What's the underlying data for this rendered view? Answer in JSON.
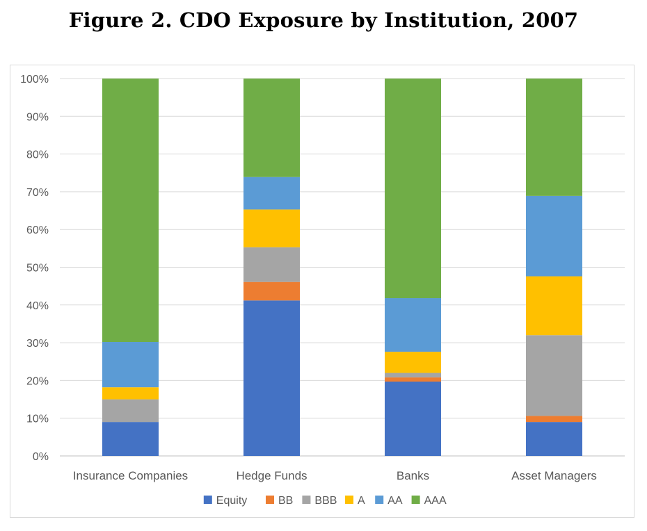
{
  "chart_data": {
    "type": "bar",
    "stacked": true,
    "title": "Figure 2. CDO Exposure by Institution, 2007",
    "xlabel": "",
    "ylabel": "",
    "ylim": [
      0,
      100
    ],
    "ytick_format": "percent",
    "yticks": [
      "0%",
      "10%",
      "20%",
      "30%",
      "40%",
      "50%",
      "60%",
      "70%",
      "80%",
      "90%",
      "100%"
    ],
    "grid": true,
    "legend_position": "bottom",
    "categories": [
      "Insurance Companies",
      "Hedge Funds",
      "Banks",
      "Asset Managers"
    ],
    "series": [
      {
        "name": "Equity",
        "color": "#4472c4",
        "values": [
          9.0,
          41.2,
          19.7,
          9.0
        ]
      },
      {
        "name": "BB",
        "color": "#ed7d31",
        "values": [
          0.0,
          4.9,
          1.1,
          1.6
        ]
      },
      {
        "name": "BBB",
        "color": "#a5a5a5",
        "values": [
          6.0,
          9.2,
          1.2,
          21.4
        ]
      },
      {
        "name": "A",
        "color": "#ffc000",
        "values": [
          3.2,
          10.0,
          5.6,
          15.6
        ]
      },
      {
        "name": "AA",
        "color": "#5b9bd5",
        "values": [
          12.0,
          8.6,
          14.2,
          21.3
        ]
      },
      {
        "name": "AAA",
        "color": "#70ad47",
        "values": [
          69.8,
          26.1,
          58.2,
          31.1
        ]
      }
    ]
  }
}
